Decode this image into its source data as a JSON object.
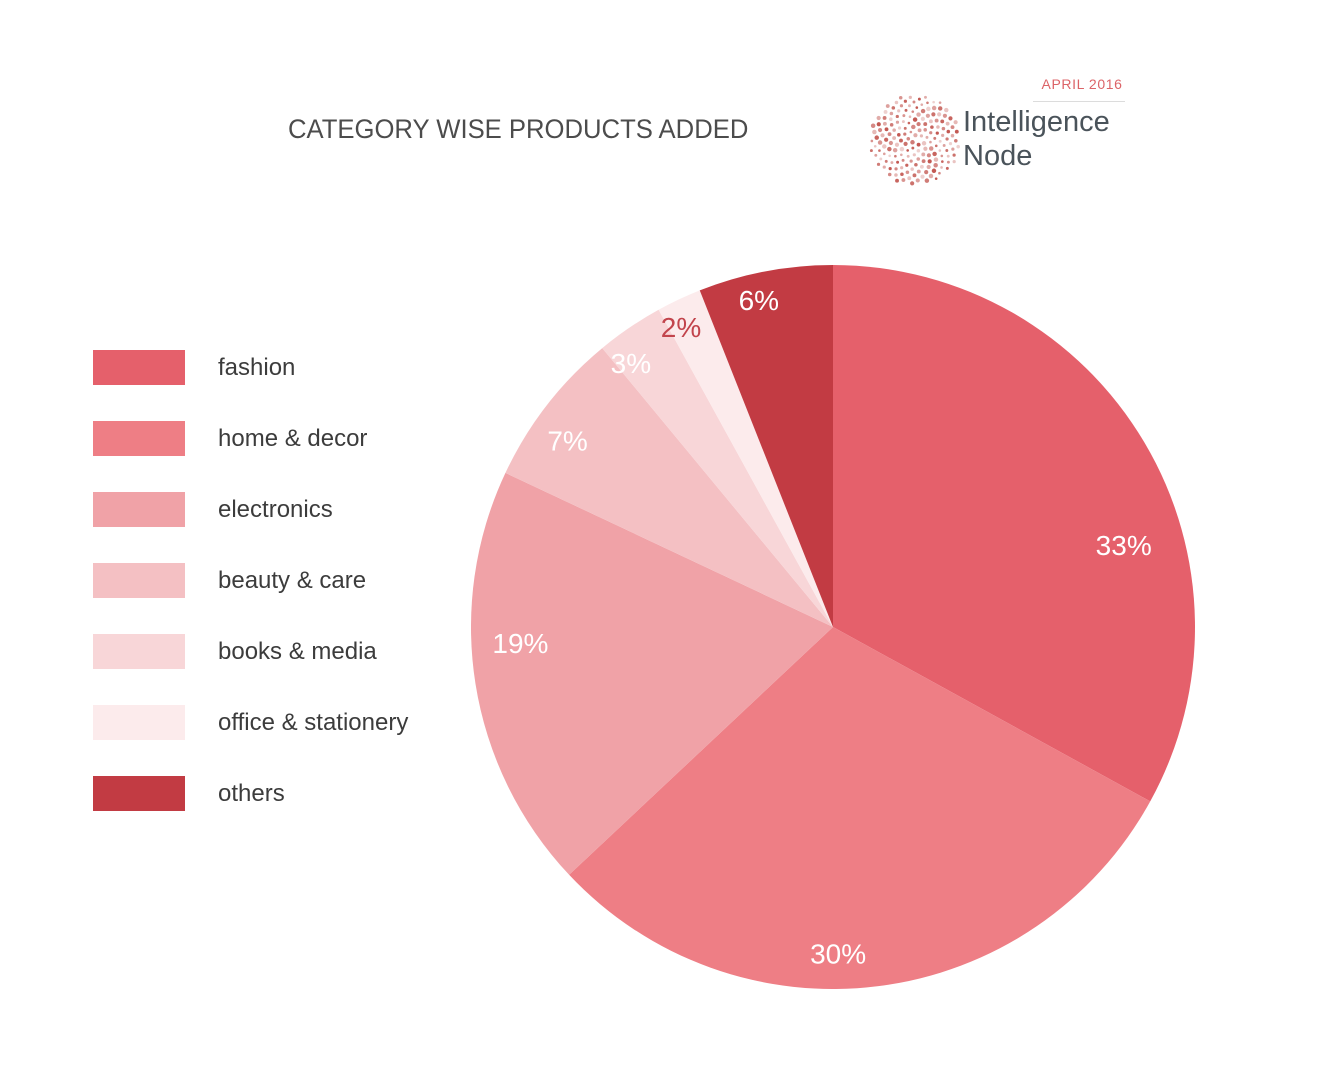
{
  "header": {
    "title": "CATEGORY WISE PRODUCTS ADDED",
    "date_label": "APRIL 2016",
    "brand_line1": "Intelligence",
    "brand_line2": "Node"
  },
  "logo": {
    "name": "intelligence-node-dotted-sphere",
    "dot_color": "#bd4740"
  },
  "chart_data": {
    "type": "pie",
    "title": "CATEGORY WISE PRODUCTS ADDED",
    "unit": "%",
    "direction": "clockwise",
    "start_angle_deg": 0,
    "legend_position": "left",
    "categories": [
      "fashion",
      "home & decor",
      "electronics",
      "beauty & care",
      "books & media",
      "office & stationery",
      "others"
    ],
    "values": [
      33,
      30,
      19,
      7,
      3,
      2,
      6
    ],
    "slices": [
      {
        "label": "fashion",
        "value": 33,
        "value_label": "33%",
        "color": "#e5606b",
        "value_label_color": "#ffffff"
      },
      {
        "label": "home & decor",
        "value": 30,
        "value_label": "30%",
        "color": "#ee7e85",
        "value_label_color": "#ffffff"
      },
      {
        "label": "electronics",
        "value": 19,
        "value_label": "19%",
        "color": "#f0a2a7",
        "value_label_color": "#ffffff"
      },
      {
        "label": "beauty & care",
        "value": 7,
        "value_label": "7%",
        "color": "#f4c0c3",
        "value_label_color": "#ffffff"
      },
      {
        "label": "books & media",
        "value": 3,
        "value_label": "3%",
        "color": "#f8d6d8",
        "value_label_color": "#ffffff"
      },
      {
        "label": "office & stationery",
        "value": 2,
        "value_label": "2%",
        "color": "#fcebec",
        "value_label_color": "#c2444c"
      },
      {
        "label": "others",
        "value": 6,
        "value_label": "6%",
        "color": "#c23b43",
        "value_label_color": "#ffffff"
      }
    ]
  }
}
